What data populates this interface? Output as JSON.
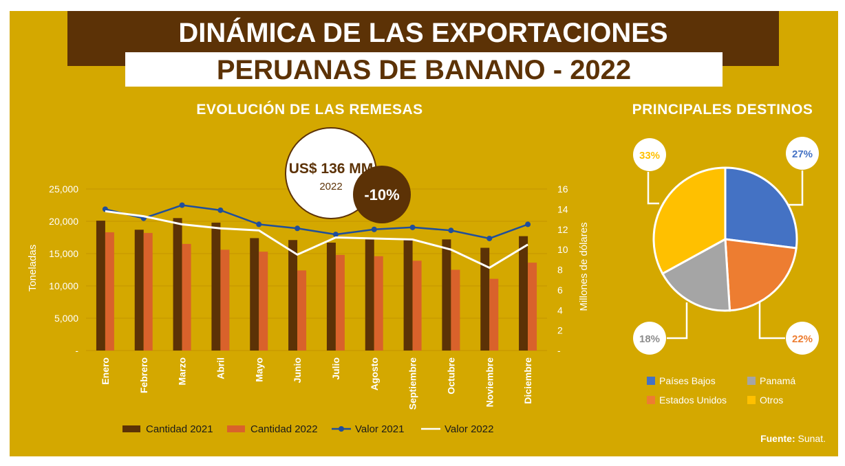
{
  "header": {
    "title_line1": "DINÁMICA DE LAS EXPORTACIONES",
    "title_line2": "PERUANAS DE BANANO - 2022"
  },
  "left_section": {
    "title": "EVOLUCIÓN DE LAS REMESAS"
  },
  "right_section": {
    "title": "PRINCIPALES DESTINOS"
  },
  "callout": {
    "value": "US$ 136 MM",
    "year": "2022",
    "change": "-10%"
  },
  "colors": {
    "cantidad_2021": "#5c3206",
    "cantidad_2022": "#d9622b",
    "valor_2021": "#1f4e9c",
    "valor_2022": "#ffffff",
    "paises_bajos": "#4472c4",
    "estados_unidos": "#ed7d31",
    "panama": "#a5a5a5",
    "otros": "#ffc000"
  },
  "source": {
    "label": "Fuente:",
    "text": "Sunat."
  },
  "chart_data": [
    {
      "type": "bar",
      "categories": [
        "Enero",
        "Febrero",
        "Marzo",
        "Abril",
        "Mayo",
        "Junio",
        "Julio",
        "Agosto",
        "Septiembre",
        "Octubre",
        "Noviembre",
        "Diciembre"
      ],
      "ylabel": "Toneladas",
      "y2label": "Millones de dólares",
      "ylim": [
        0,
        25000
      ],
      "y2lim": [
        0,
        16
      ],
      "yticks": [
        "-",
        "5,000",
        "10,000",
        "15,000",
        "20,000",
        "25,000"
      ],
      "y2ticks": [
        "-",
        "2",
        "4",
        "6",
        "8",
        "10",
        "12",
        "14",
        "16"
      ],
      "series": [
        {
          "name": "Cantidad 2021",
          "kind": "bar",
          "axis": "left",
          "values": [
            20100,
            18700,
            20500,
            19800,
            17400,
            17100,
            16700,
            17200,
            17100,
            17200,
            15900,
            17700
          ]
        },
        {
          "name": "Cantidad 2022",
          "kind": "bar",
          "axis": "left",
          "values": [
            18300,
            18200,
            16500,
            15600,
            15300,
            12400,
            14800,
            14600,
            13900,
            12500,
            11100,
            13600
          ]
        },
        {
          "name": "Valor 2021",
          "kind": "line",
          "axis": "right",
          "values": [
            14.0,
            13.1,
            14.4,
            13.9,
            12.5,
            12.1,
            11.5,
            12.0,
            12.2,
            11.9,
            11.1,
            12.5
          ]
        },
        {
          "name": "Valor 2022",
          "kind": "line",
          "axis": "right",
          "values": [
            13.8,
            13.3,
            12.5,
            12.1,
            11.9,
            9.5,
            11.2,
            11.1,
            11.0,
            10.0,
            8.2,
            10.5
          ]
        }
      ],
      "legend_position": "bottom"
    },
    {
      "type": "pie",
      "slices": [
        {
          "name": "Países Bajos",
          "value": 27,
          "label": "27%"
        },
        {
          "name": "Estados Unidos",
          "value": 22,
          "label": "22%"
        },
        {
          "name": "Panamá",
          "value": 18,
          "label": "18%"
        },
        {
          "name": "Otros",
          "value": 33,
          "label": "33%"
        }
      ],
      "legend_position": "bottom"
    }
  ]
}
